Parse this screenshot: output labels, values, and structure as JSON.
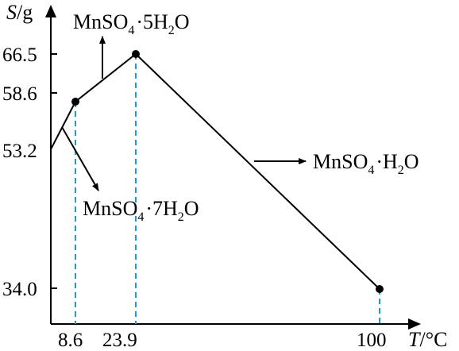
{
  "chart_data": {
    "type": "line",
    "x_axis": {
      "label_var": "T",
      "label_unit": "/°C",
      "ticks": [
        "8.6",
        "23.9",
        "100"
      ]
    },
    "y_axis": {
      "label_var": "S",
      "label_unit": "/g",
      "ticks": [
        "66.5",
        "58.6",
        "53.2",
        "34.0"
      ]
    },
    "points": [
      {
        "x": 0,
        "y": 53.2,
        "marker": false
      },
      {
        "x": 8.6,
        "y": 58.6,
        "marker": true
      },
      {
        "x": 23.9,
        "y": 66.5,
        "marker": true
      },
      {
        "x": 100,
        "y": 34.0,
        "marker": true
      }
    ],
    "annotations": {
      "hepta": {
        "base": "MnSO",
        "sub4": "4",
        "mid": "·7H",
        "sub2": "2",
        "end": "O"
      },
      "penta": {
        "base": "MnSO",
        "sub4": "4",
        "mid": "·5H",
        "sub2": "2",
        "end": "O"
      },
      "mono": {
        "base": "MnSO",
        "sub4": "4",
        "mid": "·H",
        "sub2": "2",
        "end": "O"
      }
    },
    "grid": false,
    "legend": "none"
  },
  "colors": {
    "line": "#000000",
    "dashed": "#1a9ad6",
    "axis": "#000000"
  }
}
